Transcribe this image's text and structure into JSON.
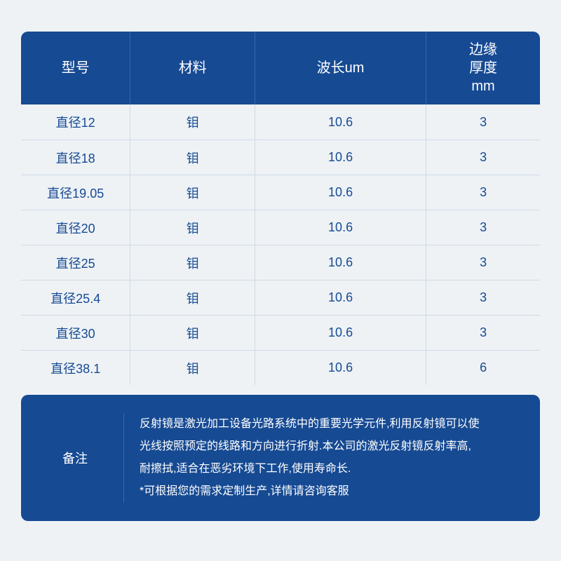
{
  "colors": {
    "panel_bg": "#164a93",
    "panel_divider": "#3b68a6",
    "page_bg": "#eef2f5",
    "body_text": "#164a93",
    "body_divider": "#cfd9e6",
    "header_text": "#ffffff"
  },
  "table": {
    "type": "table",
    "column_widths_pct": [
      21,
      24,
      33,
      22
    ],
    "header_fontsize": 20,
    "body_fontsize": 18,
    "columns": [
      "型号",
      "材料",
      "波长um",
      "边缘\n厚度\nmm"
    ],
    "rows": [
      [
        "直径12",
        "钼",
        "10.6",
        "3"
      ],
      [
        "直径18",
        "钼",
        "10.6",
        "3"
      ],
      [
        "直径19.05",
        "钼",
        "10.6",
        "3"
      ],
      [
        "直径20",
        "钼",
        "10.6",
        "3"
      ],
      [
        "直径25",
        "钼",
        "10.6",
        "3"
      ],
      [
        "直径25.4",
        "钼",
        "10.6",
        "3"
      ],
      [
        "直径30",
        "钼",
        "10.6",
        "3"
      ],
      [
        "直径38.1",
        "钼",
        "10.6",
        "6"
      ]
    ]
  },
  "note": {
    "label": "备注",
    "body_line1": "反射镜是激光加工设备光路系统中的重要光学元件,利用反射镜可以使",
    "body_line2": "光线按照预定的线路和方向进行折射.本公司的激光反射镜反射率高,",
    "body_line3": "耐擦拭,适合在恶劣环境下工作,使用寿命长.",
    "body_line4": "*可根据您的需求定制生产,详情请咨询客服"
  }
}
